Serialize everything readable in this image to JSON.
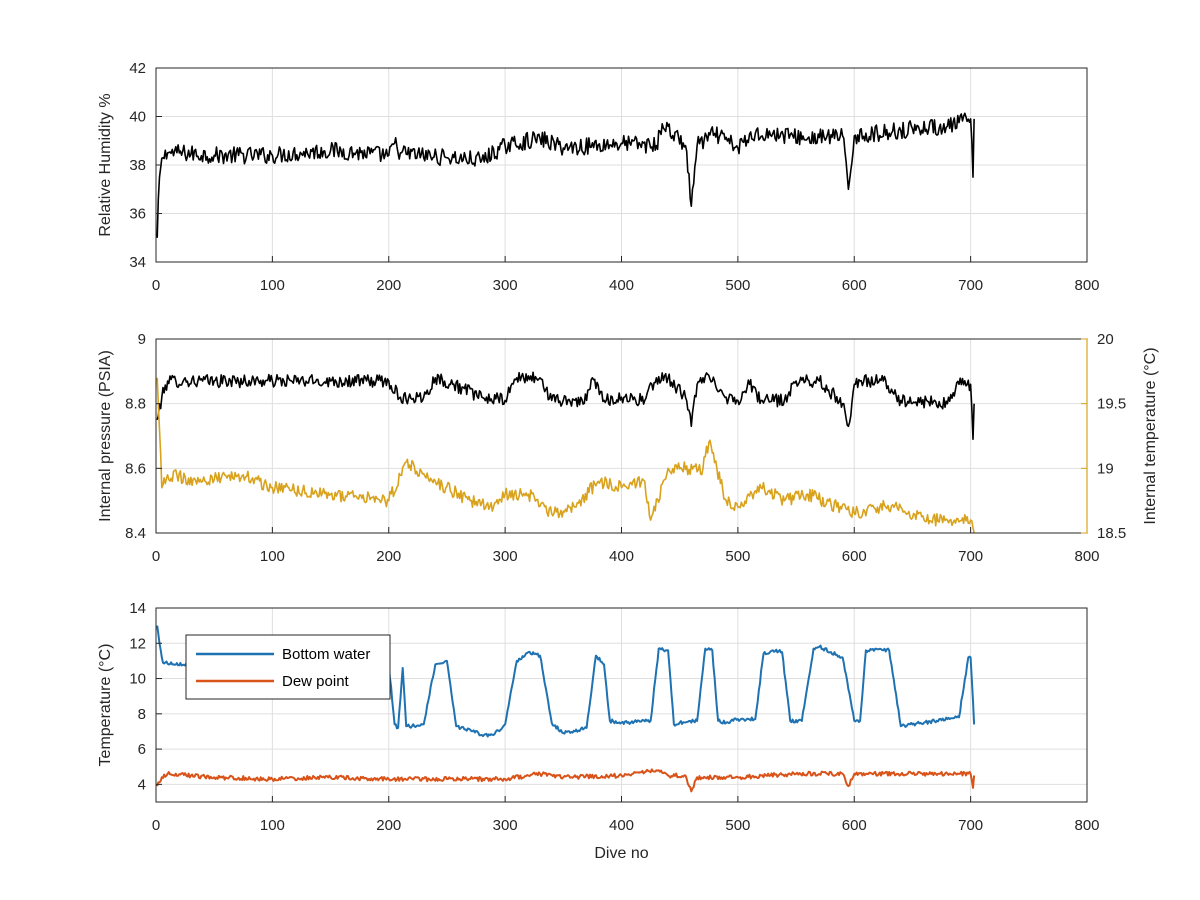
{
  "chart_data": [
    {
      "type": "line",
      "ylabel": "Relative Humidity %",
      "xlabel": "",
      "xlim": [
        0,
        800
      ],
      "ylim": [
        34,
        42
      ],
      "xticks": [
        "0",
        "100",
        "200",
        "300",
        "400",
        "500",
        "600",
        "700",
        "800"
      ],
      "yticks": [
        "34",
        "36",
        "38",
        "40",
        "42"
      ],
      "grid": true,
      "series": [
        {
          "color": "#000000",
          "noise": 0.35,
          "x": [
            1,
            3,
            6,
            10,
            20,
            50,
            100,
            150,
            200,
            205,
            210,
            250,
            280,
            300,
            330,
            350,
            400,
            430,
            435,
            455,
            460,
            465,
            480,
            500,
            515,
            530,
            560,
            590,
            595,
            600,
            620,
            650,
            680,
            700,
            702,
            703
          ],
          "y": [
            35,
            37.5,
            38.3,
            38.5,
            38.5,
            38.4,
            38.4,
            38.6,
            38.4,
            38.9,
            38.5,
            38.3,
            38.2,
            38.8,
            39.1,
            38.7,
            38.9,
            38.8,
            39.7,
            38.8,
            36.3,
            38.8,
            39.3,
            38.7,
            39.3,
            39.3,
            39.1,
            39.2,
            37.0,
            39.2,
            39.3,
            39.5,
            39.6,
            39.9,
            37.5,
            39.9
          ]
        }
      ]
    },
    {
      "type": "line",
      "ylabel": "Internal pressure (PSIA)",
      "ylabel_right": "Internal temperature (°C)",
      "xlabel": "",
      "xlim": [
        0,
        800
      ],
      "ylim": [
        8.4,
        9.0
      ],
      "ylim_right": [
        18.5,
        20
      ],
      "xticks": [
        "0",
        "100",
        "200",
        "300",
        "400",
        "500",
        "600",
        "700",
        "800"
      ],
      "yticks": [
        "8.4",
        "8.6",
        "8.8",
        "9"
      ],
      "yticks_right": [
        "18.5",
        "19",
        "19.5",
        "20"
      ],
      "grid": true,
      "series": [
        {
          "color": "#000000",
          "axis": "left",
          "noise": 0.02,
          "x": [
            1,
            5,
            10,
            50,
            100,
            150,
            200,
            210,
            230,
            240,
            255,
            280,
            300,
            310,
            330,
            340,
            370,
            375,
            385,
            400,
            420,
            430,
            440,
            455,
            460,
            465,
            470,
            480,
            490,
            500,
            510,
            520,
            540,
            550,
            570,
            590,
            595,
            600,
            605,
            625,
            640,
            680,
            690,
            700,
            702,
            703
          ],
          "y": [
            8.75,
            8.82,
            8.87,
            8.87,
            8.87,
            8.87,
            8.87,
            8.82,
            8.82,
            8.88,
            8.86,
            8.82,
            8.81,
            8.88,
            8.88,
            8.81,
            8.81,
            8.88,
            8.81,
            8.82,
            8.81,
            8.88,
            8.88,
            8.82,
            8.73,
            8.86,
            8.88,
            8.87,
            8.82,
            8.81,
            8.86,
            8.81,
            8.81,
            8.87,
            8.87,
            8.8,
            8.73,
            8.86,
            8.87,
            8.87,
            8.81,
            8.8,
            8.86,
            8.86,
            8.69,
            8.8
          ]
        },
        {
          "color": "#d9a21c",
          "axis": "right",
          "noise": 0.05,
          "x": [
            1,
            3,
            5,
            10,
            40,
            75,
            100,
            150,
            200,
            215,
            240,
            270,
            290,
            300,
            320,
            340,
            360,
            380,
            400,
            420,
            425,
            440,
            470,
            475,
            490,
            500,
            520,
            540,
            560,
            600,
            620,
            640,
            660,
            680,
            700,
            703
          ],
          "y": [
            19.7,
            19.3,
            18.85,
            18.95,
            18.9,
            18.95,
            18.85,
            18.8,
            18.75,
            19.05,
            18.9,
            18.75,
            18.7,
            18.8,
            18.8,
            18.65,
            18.7,
            18.9,
            18.85,
            18.9,
            18.6,
            19.0,
            19.0,
            19.2,
            18.75,
            18.7,
            18.85,
            18.75,
            18.8,
            18.65,
            18.7,
            18.7,
            18.6,
            18.6,
            18.6,
            18.5
          ]
        }
      ]
    },
    {
      "type": "line",
      "ylabel": "Temperature (°C)",
      "xlabel": "Dive no",
      "xlim": [
        0,
        800
      ],
      "ylim": [
        3,
        14
      ],
      "xticks": [
        "0",
        "100",
        "200",
        "300",
        "400",
        "500",
        "600",
        "700",
        "800"
      ],
      "yticks": [
        "4",
        "6",
        "8",
        "10",
        "12",
        "14"
      ],
      "grid": true,
      "legend": "top-left",
      "series": [
        {
          "name": "Bottom water",
          "color": "#1f72b2",
          "noise": 0.1,
          "x": [
            1,
            3,
            6,
            30,
            100,
            150,
            200,
            205,
            208,
            212,
            215,
            220,
            230,
            240,
            250,
            258,
            262,
            270,
            280,
            290,
            300,
            310,
            320,
            330,
            340,
            350,
            370,
            378,
            385,
            390,
            400,
            425,
            432,
            440,
            445,
            450,
            465,
            472,
            478,
            483,
            490,
            500,
            515,
            522,
            530,
            538,
            545,
            555,
            565,
            570,
            580,
            590,
            600,
            605,
            610,
            625,
            630,
            640,
            660,
            680,
            690,
            698,
            700,
            703
          ],
          "y": [
            13,
            12,
            10.9,
            10.8,
            10.8,
            10.8,
            10.8,
            7.4,
            7.2,
            10.6,
            7.3,
            7.3,
            7.4,
            10.8,
            11.0,
            7.3,
            7.2,
            7.1,
            6.8,
            6.8,
            7.4,
            11.0,
            11.5,
            11.3,
            7.5,
            6.9,
            7.2,
            11.3,
            10.8,
            7.6,
            7.5,
            7.6,
            11.7,
            11.6,
            7.4,
            7.5,
            7.6,
            11.7,
            11.6,
            7.6,
            7.5,
            7.7,
            7.7,
            11.4,
            11.6,
            11.5,
            7.6,
            7.6,
            11.7,
            11.8,
            11.5,
            11.2,
            7.6,
            7.6,
            11.6,
            11.6,
            11.6,
            7.3,
            7.5,
            7.7,
            7.8,
            11.2,
            11.2,
            7.4
          ]
        },
        {
          "name": "Dew point",
          "color": "#d95319",
          "noise": 0.12,
          "x": [
            1,
            5,
            10,
            50,
            100,
            150,
            200,
            250,
            300,
            330,
            350,
            400,
            430,
            440,
            455,
            460,
            465,
            500,
            550,
            590,
            595,
            600,
            650,
            700,
            702,
            703
          ],
          "y": [
            3.9,
            4.4,
            4.6,
            4.4,
            4.3,
            4.4,
            4.3,
            4.3,
            4.3,
            4.6,
            4.4,
            4.5,
            4.8,
            4.5,
            4.5,
            3.6,
            4.4,
            4.4,
            4.6,
            4.6,
            3.9,
            4.6,
            4.6,
            4.6,
            3.8,
            4.5
          ]
        }
      ]
    }
  ]
}
